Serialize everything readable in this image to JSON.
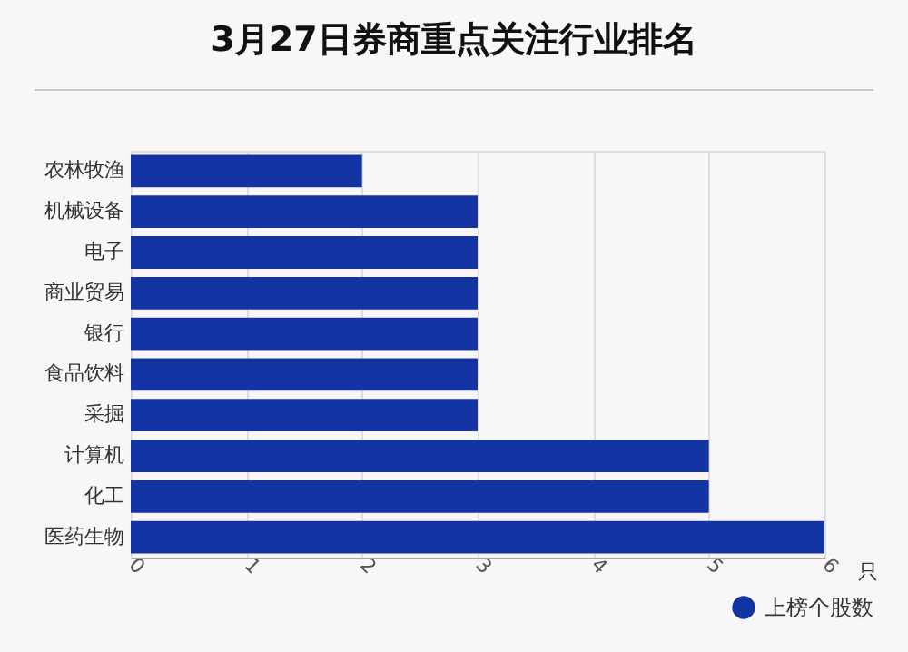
{
  "chart_data": {
    "type": "bar",
    "orientation": "horizontal",
    "title": "3月27日券商重点关注行业排名",
    "xlabel": "只",
    "categories": [
      "农林牧渔",
      "机械设备",
      "电子",
      "商业贸易",
      "银行",
      "食品饮料",
      "采掘",
      "计算机",
      "化工",
      "医药生物"
    ],
    "series": [
      {
        "name": "上榜个股数",
        "color": "#1434a4",
        "values": [
          2,
          3,
          3,
          3,
          3,
          3,
          3,
          5,
          5,
          6
        ]
      }
    ],
    "xlim": [
      0,
      6
    ],
    "xticks": [
      0,
      1,
      2,
      3,
      4,
      5,
      6
    ],
    "grid": "x",
    "legend": "bottom right"
  }
}
